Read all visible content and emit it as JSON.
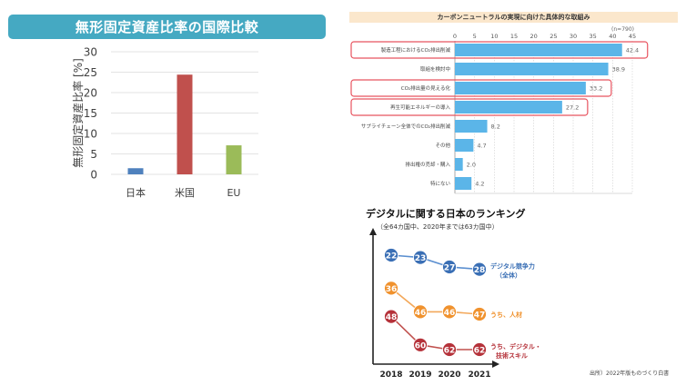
{
  "chart_data": [
    {
      "type": "bar",
      "title": "無形固定資産比率の国際比較",
      "xlabel": "",
      "ylabel": "無形固定資産比率 [%]",
      "ylim": [
        0,
        30
      ],
      "yticks": [
        0,
        5,
        10,
        15,
        20,
        25,
        30
      ],
      "grid": true,
      "categories": [
        "日本",
        "米国",
        "EU"
      ],
      "values": [
        1.5,
        24.4,
        7.1
      ],
      "colors": [
        "#4f81bd",
        "#c0504d",
        "#9bbb59"
      ]
    },
    {
      "type": "bar",
      "orientation": "horizontal",
      "title": "カーボンニュートラルの実現に向けた具体的な取組み",
      "note": "(n=790)",
      "xlim": [
        0,
        45
      ],
      "xticks": [
        0,
        5,
        10,
        15,
        20,
        25,
        30,
        35,
        40,
        45
      ],
      "grid": true,
      "categories": [
        "製造工程におけるCO₂排出削減",
        "取組を検討中",
        "CO₂排出量の見える化",
        "再生可能エネルギーの導入",
        "サプライチェーン全体でのCO₂排出削減",
        "その他",
        "排出権の売却・購入",
        "特にない"
      ],
      "values": [
        42.4,
        38.9,
        33.2,
        27.2,
        8.2,
        4.7,
        2.0,
        4.2
      ],
      "value_labels": [
        "42.4",
        "38.9",
        "33.2",
        "27.2",
        "8.2",
        "4.7",
        "2.0",
        "4.2"
      ],
      "highlighted": [
        true,
        false,
        true,
        true,
        false,
        false,
        false,
        false
      ],
      "bar_color": "#5bb5e8",
      "highlight_color": "#e8535f"
    },
    {
      "type": "line",
      "title": "デジタルに関する日本のランキング",
      "subtitle": "（全64カ国中、2020年までは63カ国中）",
      "x": [
        "2018",
        "2019",
        "2020",
        "2021"
      ],
      "ylim": [
        15,
        68
      ],
      "y_inverted": true,
      "series": [
        {
          "name": "デジタル競争力（全体）",
          "label_lines": [
            "デジタル競争力",
            "（全体）"
          ],
          "values": [
            22,
            23,
            27,
            28
          ],
          "color": "#3a6fb5",
          "line_color": "#5b8fd0"
        },
        {
          "name": "うち、人材",
          "label_lines": [
            "うち、人材"
          ],
          "values": [
            36,
            46,
            46,
            47
          ],
          "color": "#f0922e",
          "line_color": "#f3a85a"
        },
        {
          "name": "うち、デジタル・技術スキル",
          "label_lines": [
            "うち、デジタル・",
            "技術スキル"
          ],
          "values": [
            48,
            60,
            62,
            62
          ],
          "color": "#b5323a",
          "line_color": "#c0504d"
        }
      ]
    }
  ],
  "source_note": "出所）2022年版ものづくり白書"
}
